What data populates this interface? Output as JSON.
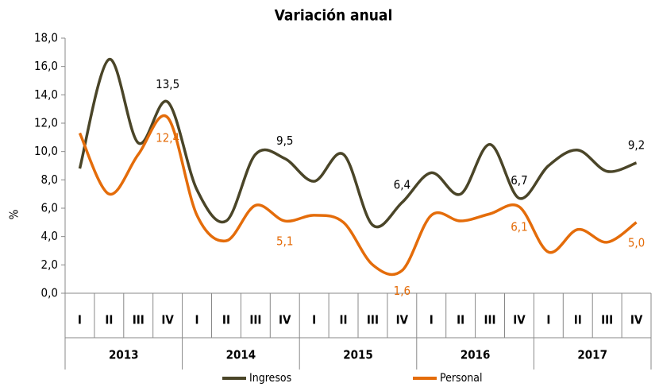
{
  "chart_data": {
    "type": "line",
    "title": "Variación anual",
    "ylabel": "%",
    "categories": [
      "I",
      "II",
      "III",
      "IV",
      "I",
      "II",
      "III",
      "IV",
      "I",
      "II",
      "III",
      "IV",
      "I",
      "II",
      "III",
      "IV",
      "I",
      "II",
      "III",
      "IV"
    ],
    "category_groups": [
      "2013",
      "2014",
      "2015",
      "2016",
      "2017"
    ],
    "series": [
      {
        "name": "Ingresos",
        "color": "#4a4528",
        "values": [
          8.8,
          16.5,
          10.6,
          13.5,
          7.3,
          5.1,
          9.8,
          9.5,
          7.9,
          9.8,
          4.8,
          6.4,
          8.5,
          7.0,
          10.5,
          6.7,
          9.0,
          10.1,
          8.6,
          9.2
        ],
        "value_labels": [
          null,
          null,
          null,
          "13,5",
          null,
          null,
          null,
          "9,5",
          null,
          null,
          null,
          "6,4",
          null,
          null,
          null,
          "6,7",
          null,
          null,
          null,
          "9,2"
        ]
      },
      {
        "name": "Personal",
        "color": "#e46c0a",
        "values": [
          11.3,
          7.0,
          9.8,
          12.4,
          5.5,
          3.7,
          6.2,
          5.1,
          5.5,
          5.0,
          2.0,
          1.6,
          5.5,
          5.1,
          5.6,
          6.1,
          2.9,
          4.5,
          3.6,
          5.0
        ],
        "value_labels": [
          null,
          null,
          null,
          "12,4",
          null,
          null,
          null,
          "5,1",
          null,
          null,
          null,
          "1,6",
          null,
          null,
          null,
          "6,1",
          null,
          null,
          null,
          "5,0"
        ]
      }
    ],
    "ylim": [
      0,
      18
    ],
    "yticks": [
      {
        "value": 0,
        "label": "0,0"
      },
      {
        "value": 2,
        "label": "2,0"
      },
      {
        "value": 4,
        "label": "4,0"
      },
      {
        "value": 6,
        "label": "6,0"
      },
      {
        "value": 8,
        "label": "8,0"
      },
      {
        "value": 10,
        "label": "10,0"
      },
      {
        "value": 12,
        "label": "12,0"
      },
      {
        "value": 14,
        "label": "14,0"
      },
      {
        "value": 16,
        "label": "16,0"
      },
      {
        "value": 18,
        "label": "18,0"
      }
    ],
    "legend": "bottom"
  }
}
